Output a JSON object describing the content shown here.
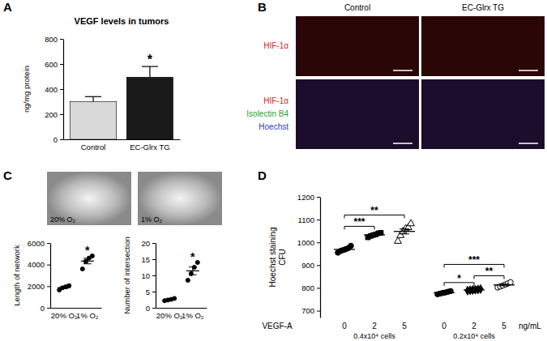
{
  "figure": {
    "panel_labels": [
      "A",
      "B",
      "C",
      "D"
    ],
    "panel_b": {
      "columns": [
        "Control",
        "EC-Glrx TG"
      ],
      "rows": [
        [
          {
            "text": "HIF-1α",
            "color": "#e0241f"
          }
        ],
        [
          {
            "text": "HIF-1α",
            "color": "#e0241f"
          },
          {
            "text": "Isolectin B4",
            "color": "#2ca02c"
          },
          {
            "text": "Hoechst",
            "color": "#1f3fbf"
          }
        ]
      ]
    },
    "panel_c_images": [
      "20% O₂",
      "1% O₂"
    ]
  },
  "chart_data": [
    {
      "type": "bar",
      "title": "VEGF levels in tumors",
      "ylabel": "ng/mg protein",
      "categories": [
        "Control",
        "EC-Glrx TG"
      ],
      "values": [
        300,
        495
      ],
      "errors": [
        40,
        85
      ],
      "colors": [
        "#d9d9d9",
        "#1a1a1a"
      ],
      "ylim": [
        0,
        800
      ],
      "yticks": [
        0,
        200,
        400,
        600,
        800
      ],
      "annotations": [
        {
          "category": 1,
          "text": "*"
        }
      ]
    },
    {
      "type": "scatter",
      "ylabel": "Length of network",
      "categories": [
        "20% O₂",
        "1% O₂"
      ],
      "points": [
        [
          1650,
          1850,
          1950,
          2050
        ],
        [
          3600,
          4300,
          4600,
          4800
        ]
      ],
      "means": [
        1875,
        4325
      ],
      "errors": [
        85,
        255
      ],
      "color": "#000000",
      "marker": "circle",
      "ylim": [
        0,
        6000
      ],
      "yticks": [
        0,
        2000,
        4000,
        6000
      ],
      "annotations": [
        {
          "category": 1,
          "text": "*"
        }
      ]
    },
    {
      "type": "scatter",
      "ylabel": "Number of intersection",
      "categories": [
        "20% O₂",
        "1% O₂"
      ],
      "points": [
        [
          2.2,
          2.4,
          2.6,
          2.9
        ],
        [
          8.5,
          10.5,
          12.5,
          14
        ]
      ],
      "means": [
        2.5,
        11.4
      ],
      "errors": [
        0.15,
        1.2
      ],
      "color": "#000000",
      "marker": "circle",
      "ylim": [
        0,
        20
      ],
      "yticks": [
        0,
        5,
        10,
        15,
        20
      ],
      "annotations": [
        {
          "category": 1,
          "text": "*"
        }
      ]
    },
    {
      "type": "scatter",
      "ylabel": [
        "Hoechst staining",
        "CFU"
      ],
      "xlabel": "VEGF-A",
      "xlabel_unit": "ng/mL",
      "color": "#000000",
      "ylim": [
        670,
        1200
      ],
      "yticks": [
        700,
        800,
        900,
        1000,
        1100,
        1200
      ],
      "groups": [
        {
          "label": "0.4x10⁴ cells",
          "series": [
            {
              "category": "0",
              "marker": "circle",
              "points": [
                955,
                962,
                966,
                970,
                975,
                985
              ],
              "mean": 969,
              "error": 5
            },
            {
              "category": "2",
              "marker": "square",
              "points": [
                1022,
                1028,
                1032,
                1035,
                1040,
                1042
              ],
              "mean": 1033,
              "error": 3
            },
            {
              "category": "5",
              "marker": "triangle-open",
              "points": [
                1005,
                1030,
                1048,
                1060,
                1065,
                1082
              ],
              "mean": 1048,
              "error": 11
            }
          ],
          "annotations": [
            {
              "from": 0,
              "to": 1,
              "text": "***"
            },
            {
              "from": 0,
              "to": 2,
              "text": "**"
            }
          ]
        },
        {
          "label": "0.2x10⁴ cells",
          "series": [
            {
              "category": "0",
              "marker": "circle",
              "points": [
                772,
                775,
                778,
                780,
                783,
                786
              ],
              "mean": 779,
              "error": 2
            },
            {
              "category": "2",
              "marker": "diamond",
              "points": [
                788,
                790,
                791,
                792,
                793,
                795
              ],
              "mean": 791,
              "error": 1
            },
            {
              "category": "5",
              "marker": "circle-open",
              "points": [
                802,
                806,
                810,
                815,
                820,
                825
              ],
              "mean": 813,
              "error": 4
            }
          ],
          "annotations": [
            {
              "from": 0,
              "to": 1,
              "text": "*"
            },
            {
              "from": 1,
              "to": 2,
              "text": "**"
            },
            {
              "from": 0,
              "to": 2,
              "text": "***"
            }
          ]
        }
      ]
    }
  ]
}
